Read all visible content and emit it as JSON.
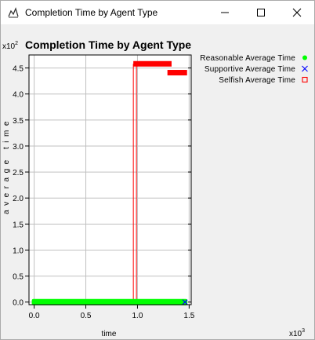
{
  "window": {
    "title": "Completion Time by Agent Type",
    "buttons": {
      "minimize": "minimize",
      "maximize": "maximize",
      "close": "close"
    }
  },
  "chart_data": {
    "type": "scatter",
    "title": "Completion Time by Agent Type",
    "xlabel": "time",
    "ylabel": "average time",
    "x_multiplier_label": "x10",
    "x_multiplier_exp": "3",
    "y_multiplier_label": "x10",
    "y_multiplier_exp": "2",
    "xlim": [
      -0.05,
      1.52
    ],
    "ylim": [
      -0.05,
      4.75
    ],
    "x_ticks": [
      {
        "value": 0.0,
        "label": "0.0"
      },
      {
        "value": 0.5,
        "label": "0.5"
      },
      {
        "value": 1.0,
        "label": "1.0"
      },
      {
        "value": 1.5,
        "label": "1.5"
      }
    ],
    "y_ticks": [
      {
        "value": 0.0,
        "label": "0.0"
      },
      {
        "value": 0.5,
        "label": "0.5"
      },
      {
        "value": 1.0,
        "label": "1.0"
      },
      {
        "value": 1.5,
        "label": "1.5"
      },
      {
        "value": 2.0,
        "label": "2.0"
      },
      {
        "value": 2.5,
        "label": "2.5"
      },
      {
        "value": 3.0,
        "label": "3.0"
      },
      {
        "value": 3.5,
        "label": "3.5"
      },
      {
        "value": 4.0,
        "label": "4.0"
      },
      {
        "value": 4.5,
        "label": "4.5"
      }
    ],
    "grid": true,
    "legend_position": "top-right",
    "series": [
      {
        "name": "Reasonable Average Time",
        "marker": "circle",
        "color": "#00ff00",
        "segments": [
          {
            "x_start": 0.0,
            "x_end": 1.46,
            "y": 0.0
          }
        ]
      },
      {
        "name": "Supportive Average Time",
        "marker": "x",
        "color": "#0000ff",
        "segments": [
          {
            "x_start": 1.46,
            "x_end": 1.46,
            "y": 0.0
          }
        ]
      },
      {
        "name": "Selfish Average Time",
        "marker": "square",
        "color": "#ff0000",
        "segments": [
          {
            "x_start": 0.96,
            "x_end": 1.33,
            "y": 4.58
          },
          {
            "x_start": 1.29,
            "x_end": 1.48,
            "y": 4.41
          }
        ],
        "vertical_lines": [
          {
            "x": 0.96,
            "y_start": 0.0,
            "y_end": 4.58
          },
          {
            "x": 0.99,
            "y_start": 0.0,
            "y_end": 4.58
          }
        ]
      }
    ]
  }
}
